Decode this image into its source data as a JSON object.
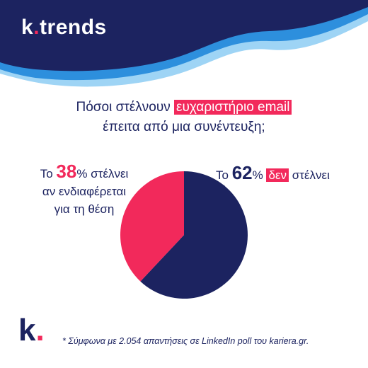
{
  "brand": {
    "name": "k",
    "dot": ".",
    "suffix": "trends"
  },
  "title": {
    "line1_prefix": "Πόσοι στέλνουν ",
    "line1_highlight": "ευχαριστήριο email",
    "line2": "έπειτα από μια συνέντευξη;"
  },
  "labels": {
    "left": {
      "prefix": "Το ",
      "value": "38",
      "unit": "%",
      "rest_line1": " στέλνει",
      "line2": "αν ενδιαφέρεται",
      "line3": "για τη θέση"
    },
    "right": {
      "prefix": "Το ",
      "value": "62",
      "unit": "%",
      "highlight": "δεν",
      "rest": " στέλνει"
    }
  },
  "chart_data": {
    "type": "pie",
    "slices": [
      {
        "label": "στέλνει αν ενδιαφέρεται για τη θέση",
        "value": 38,
        "color": "#f2295b"
      },
      {
        "label": "δεν στέλνει",
        "value": 62,
        "color": "#1c2360"
      }
    ],
    "start": "top",
    "direction": "counterclockwise-pink"
  },
  "logo": {
    "letter": "k",
    "dot": "."
  },
  "footnote": "* Σύμφωνα με 2.054 απαντήσεις σε LinkedIn poll του kariera.gr.",
  "colors": {
    "navy": "#1c2360",
    "pink": "#f2295b",
    "light_blue": "#5ab4ec",
    "sky_blue": "#2d8fdd"
  }
}
